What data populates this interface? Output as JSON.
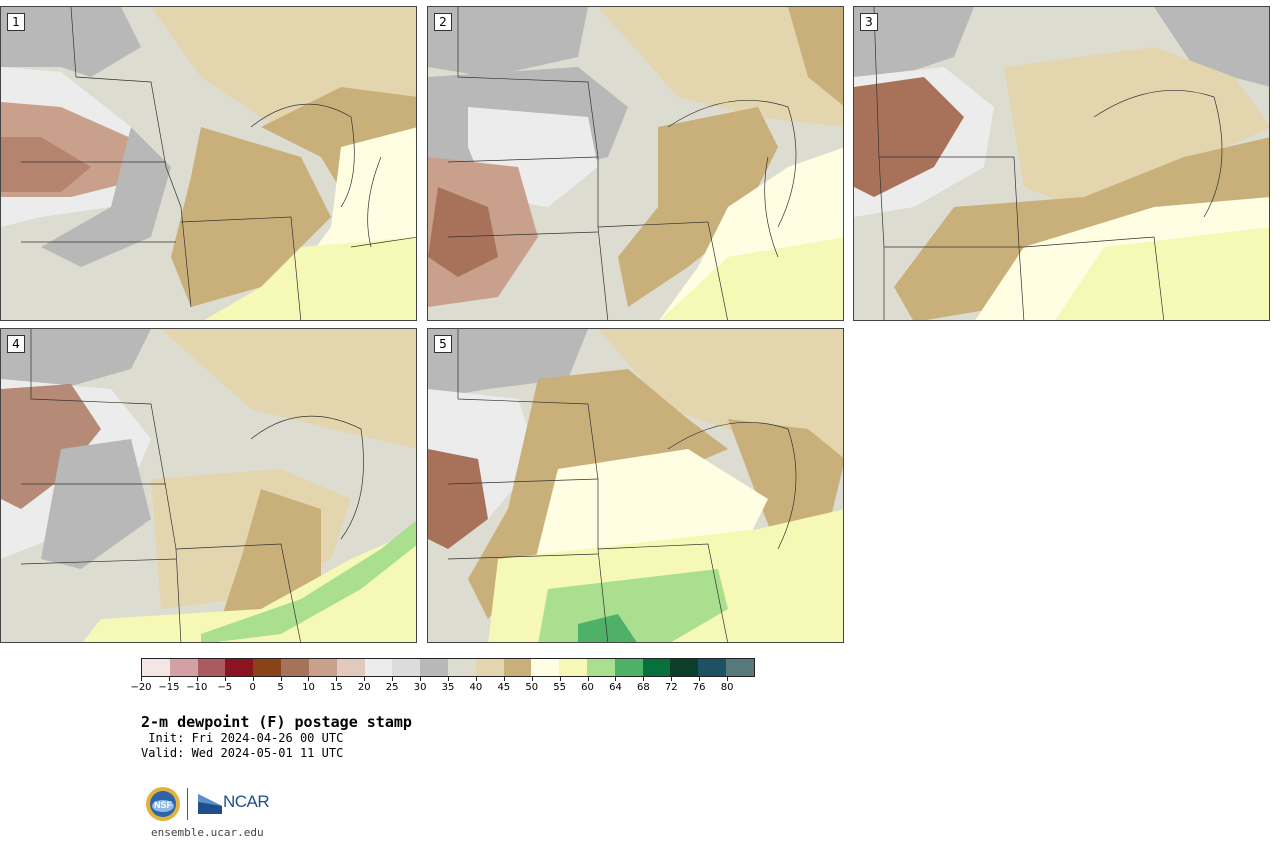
{
  "panels": [
    {
      "label": "1"
    },
    {
      "label": "2"
    },
    {
      "label": "3"
    },
    {
      "label": "4"
    },
    {
      "label": "5"
    }
  ],
  "colorbar": {
    "colors": [
      "#f3e6e4",
      "#d3a1a4",
      "#ac5a61",
      "#8b1420",
      "#8a4317",
      "#a8725a",
      "#c9a08c",
      "#e1c9bb",
      "#ececec",
      "#dcdcdc",
      "#b8b8b8",
      "#dcdcd0",
      "#e3d5ad",
      "#c9b07a",
      "#fffde2",
      "#f6f9b5",
      "#a9df8e",
      "#4fb168",
      "#07703b",
      "#0b3f29",
      "#1d5163",
      "#57797b"
    ],
    "ticks": [
      "−20",
      "−15",
      "−10",
      "−5",
      "0",
      "5",
      "10",
      "15",
      "20",
      "25",
      "30",
      "35",
      "40",
      "45",
      "50",
      "55",
      "60",
      "64",
      "68",
      "72",
      "76",
      "80"
    ]
  },
  "title": "2-m dewpoint (F) postage stamp",
  "init": " Init: Fri 2024-04-26 00 UTC",
  "valid": "Valid: Wed 2024-05-01 11 UTC",
  "logos": {
    "nsf": "NSF",
    "ncar": "NCAR"
  },
  "site": "ensemble.ucar.edu"
}
